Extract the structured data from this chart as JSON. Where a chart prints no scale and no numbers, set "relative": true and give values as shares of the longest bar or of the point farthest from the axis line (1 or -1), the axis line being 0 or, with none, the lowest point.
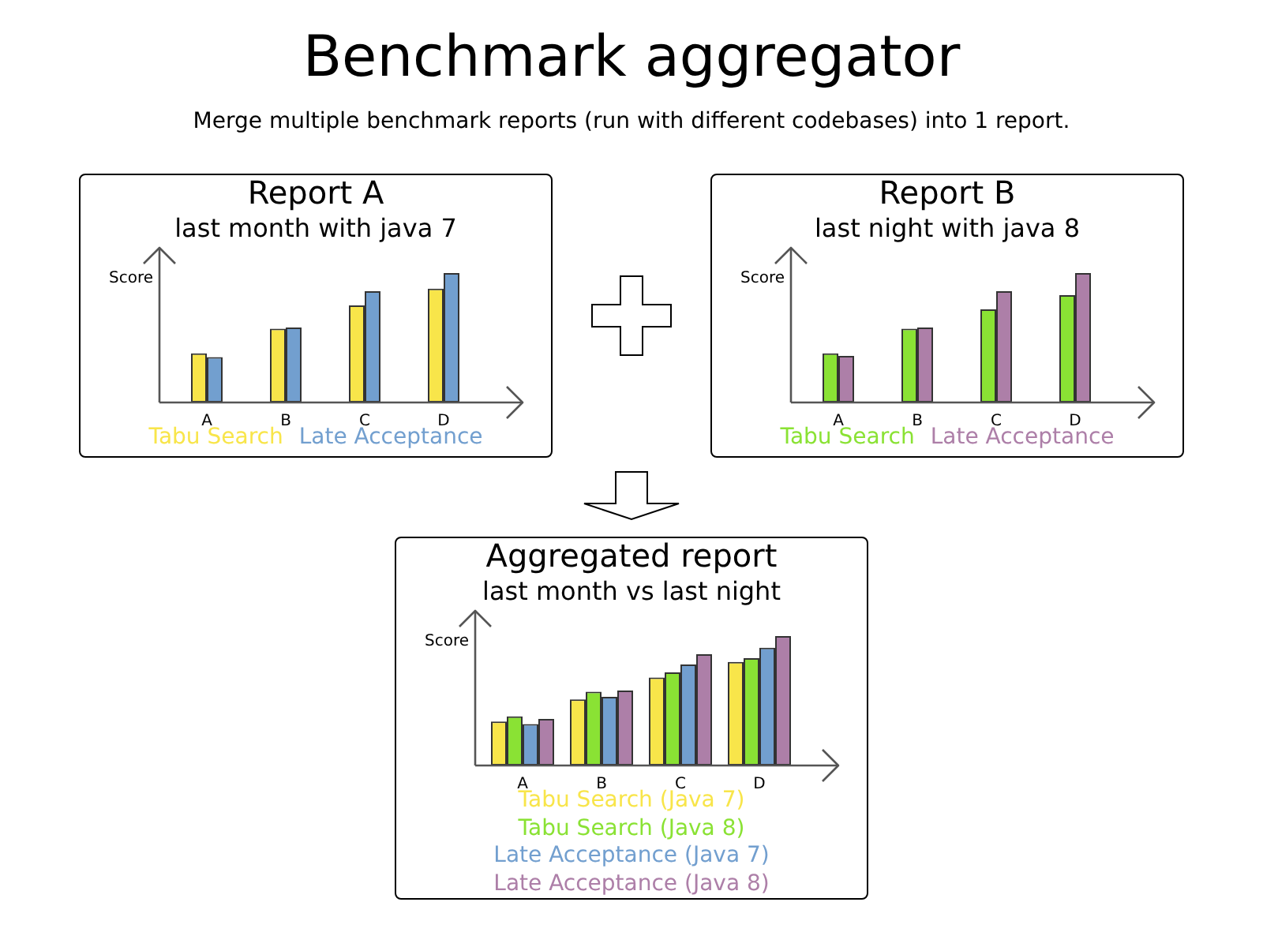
{
  "chart_data": [
    {
      "type": "other",
      "title": "Benchmark aggregator",
      "subtitle": "Merge multiple benchmark reports (run with different codebases) into 1 report."
    },
    {
      "type": "bar",
      "title": "Report A",
      "subtitle": "last month with java 7",
      "ylabel": "Score",
      "relative": true,
      "legend": "bottom",
      "categories": [
        "A",
        "B",
        "C",
        "D"
      ],
      "series": [
        {
          "name": "Tabu Search",
          "color": "#f8e54a",
          "values": [
            0.38,
            0.57,
            0.75,
            0.88
          ]
        },
        {
          "name": "Late Acceptance",
          "color": "#729fcf",
          "values": [
            0.35,
            0.58,
            0.86,
            1
          ]
        }
      ]
    },
    {
      "type": "bar",
      "title": "Report B",
      "subtitle": "last night with java 8",
      "ylabel": "Score",
      "relative": true,
      "legend": "bottom",
      "categories": [
        "A",
        "B",
        "C",
        "D"
      ],
      "series": [
        {
          "name": "Tabu Search",
          "color": "#8ae234",
          "values": [
            0.38,
            0.57,
            0.72,
            0.83
          ]
        },
        {
          "name": "Late Acceptance",
          "color": "#ad7fa8",
          "values": [
            0.36,
            0.58,
            0.86,
            1
          ]
        }
      ]
    },
    {
      "type": "bar",
      "title": "Aggregated report",
      "subtitle": "last month vs last night",
      "ylabel": "Score",
      "relative": true,
      "legend": "bottom",
      "categories": [
        "A",
        "B",
        "C",
        "D"
      ],
      "series": [
        {
          "name": "Tabu Search (Java 7)",
          "color": "#f8e54a",
          "values": [
            0.34,
            0.51,
            0.68,
            0.8
          ]
        },
        {
          "name": "Tabu Search (Java 8)",
          "color": "#8ae234",
          "values": [
            0.38,
            0.57,
            0.72,
            0.83
          ]
        },
        {
          "name": "Late Acceptance (Java 7)",
          "color": "#729fcf",
          "values": [
            0.32,
            0.53,
            0.78,
            0.91
          ]
        },
        {
          "name": "Late Acceptance (Java 8)",
          "color": "#ad7fa8",
          "values": [
            0.36,
            0.58,
            0.86,
            1
          ]
        }
      ]
    }
  ]
}
